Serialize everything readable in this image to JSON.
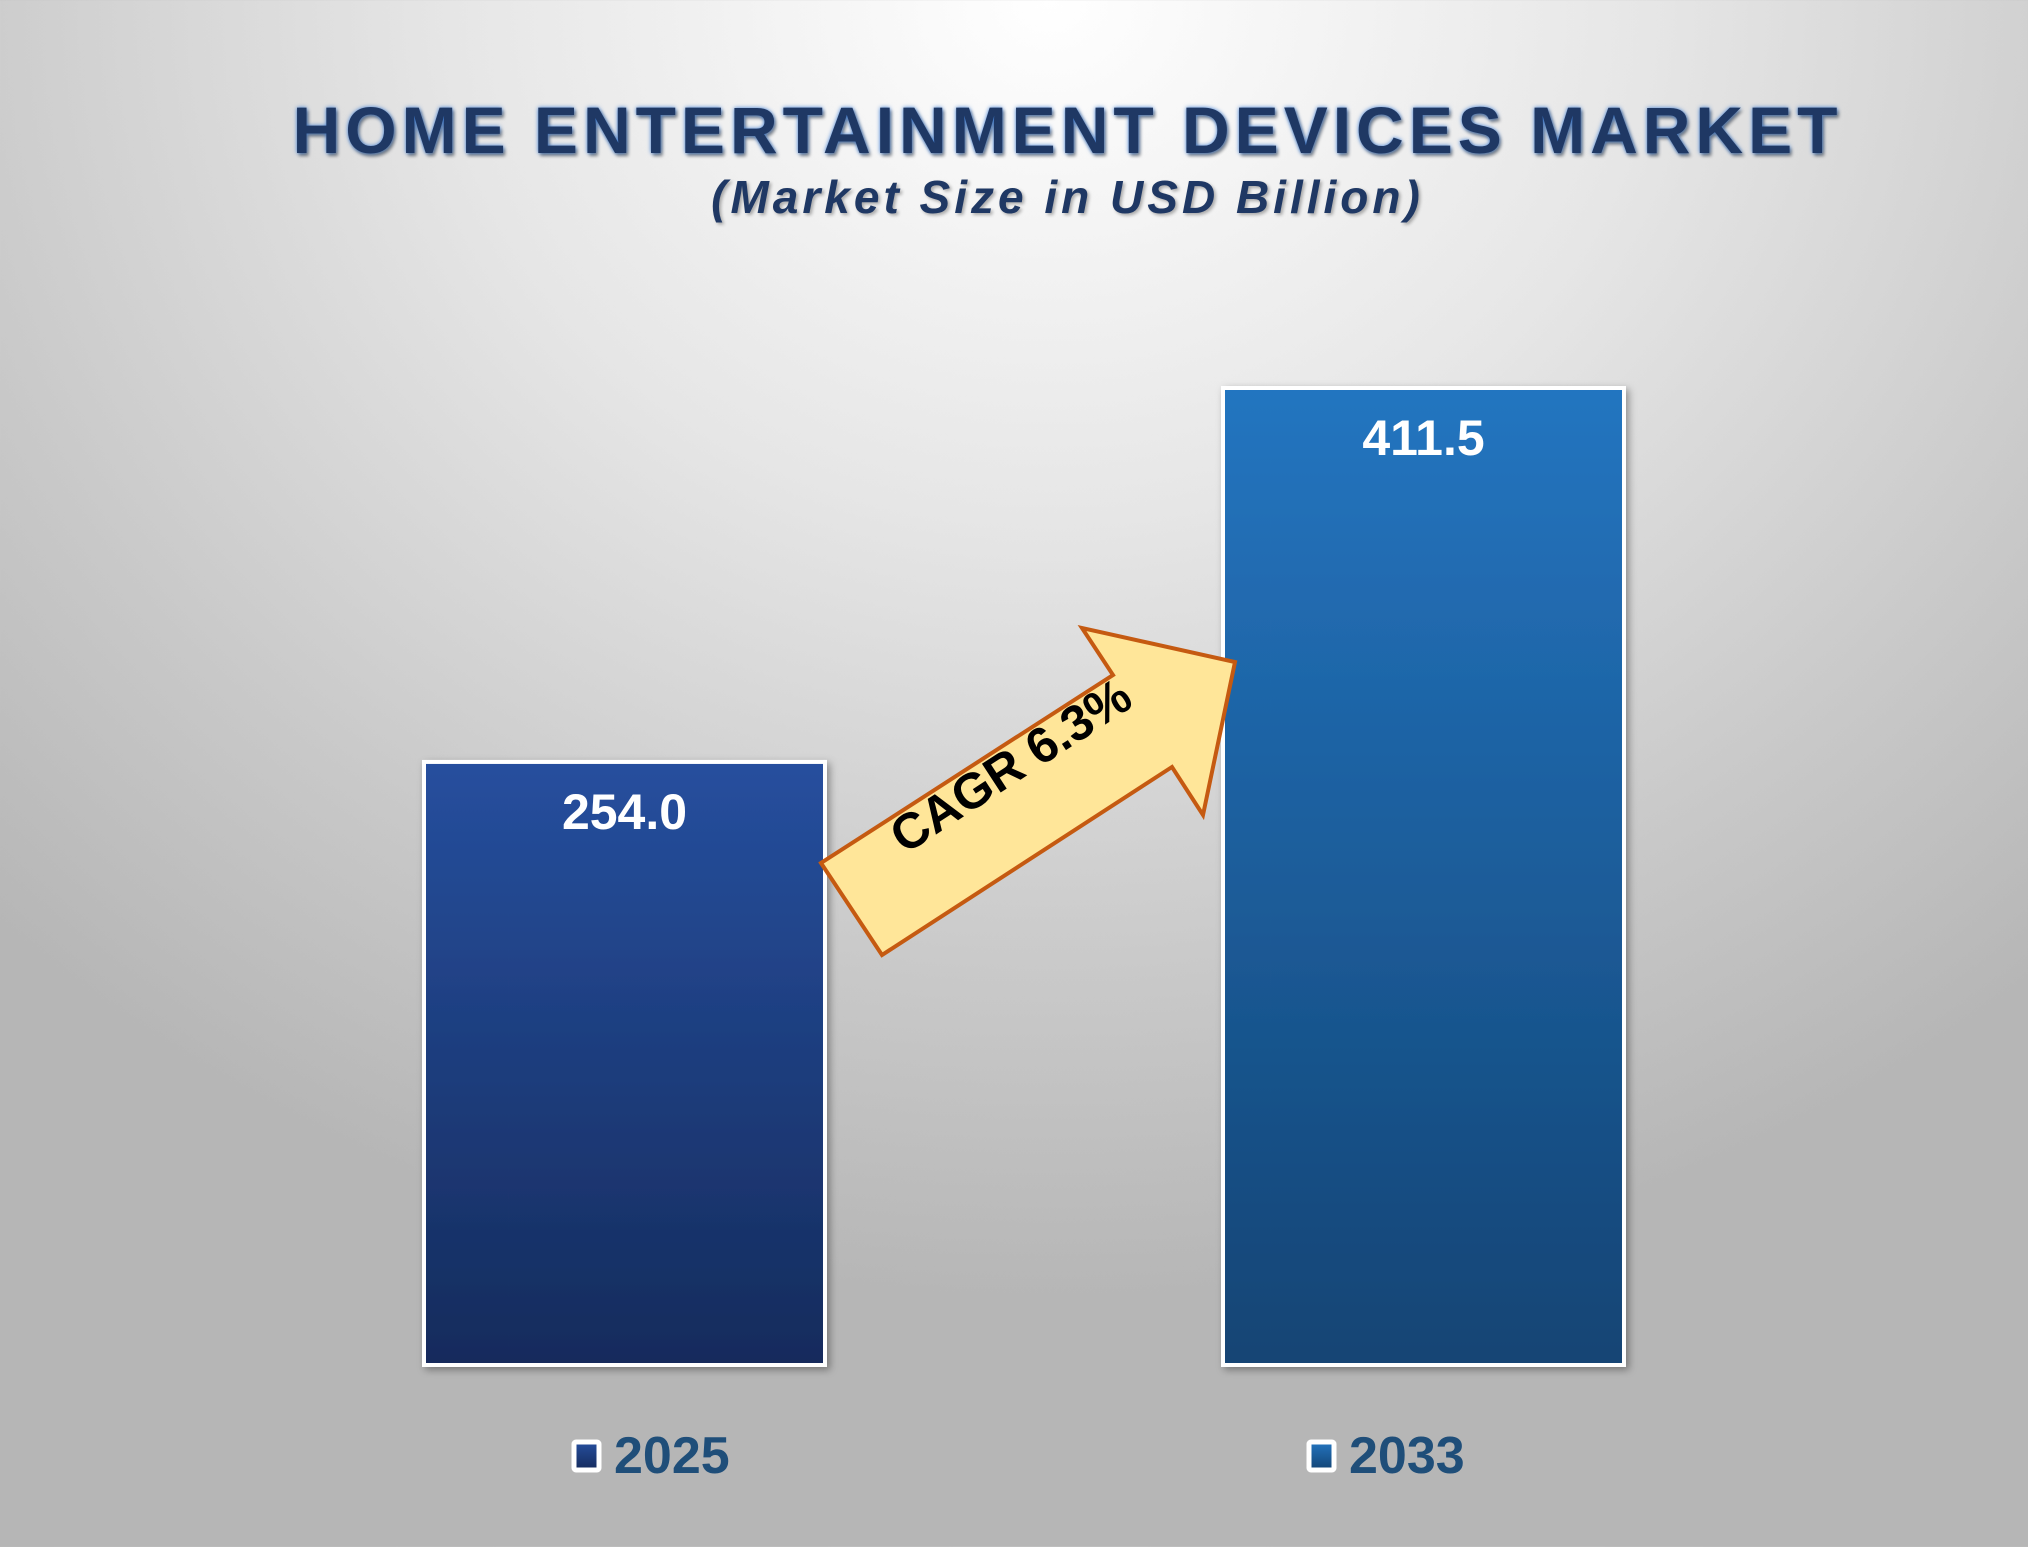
{
  "chart_data": {
    "type": "bar",
    "title": "HOME ENTERTAINMENT DEVICES MARKET",
    "subtitle": "(Market Size in USD Billion)",
    "categories": [
      "2025",
      "2033"
    ],
    "values": [
      254.0,
      411.5
    ],
    "value_labels": [
      "254.0",
      "411.5"
    ],
    "legend": [
      "2025",
      "2033"
    ],
    "legend_placement": "bottom",
    "grid": false,
    "ylim": [
      0,
      411.5
    ],
    "colors": {
      "2025": [
        "#264f9e",
        "#152b5c"
      ],
      "2033": [
        "#2475c0",
        "#134474"
      ]
    },
    "annotation": {
      "text": "CAGR 6.3%",
      "fill": "#ffe699",
      "stroke": "#c55a11"
    }
  }
}
